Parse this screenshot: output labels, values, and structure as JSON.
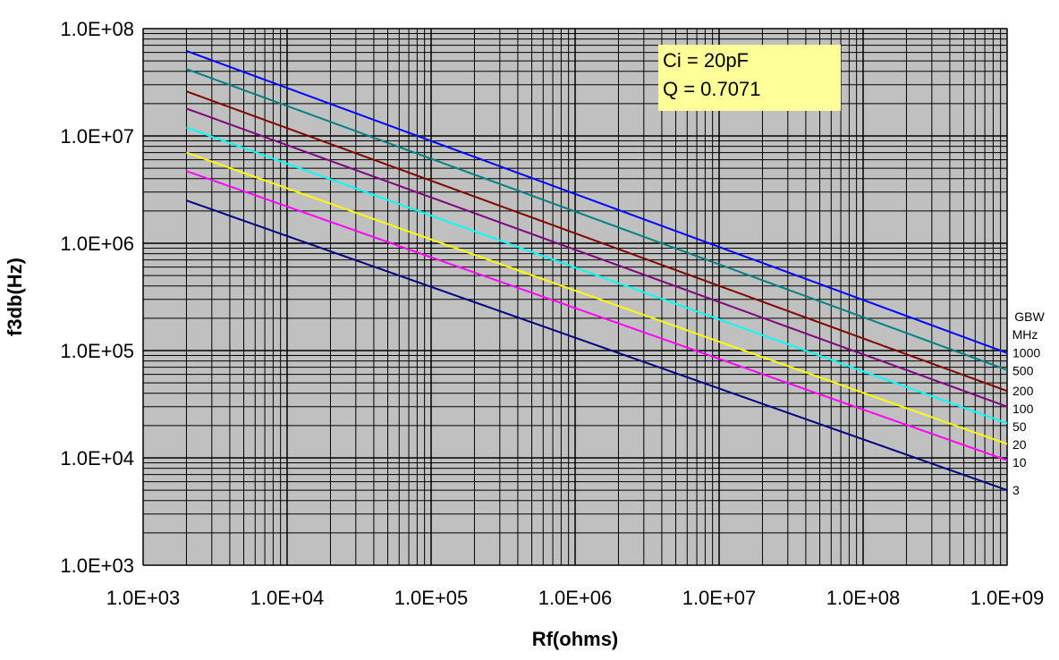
{
  "chart_data": {
    "type": "line",
    "title": "",
    "xlabel": "Rf(ohms)",
    "ylabel": "f3db(Hz)",
    "xscale": "log",
    "yscale": "log",
    "xlim": [
      1000,
      1000000000
    ],
    "ylim": [
      1000,
      100000000
    ],
    "xtick_labels": [
      "1.0E+03",
      "1.0E+04",
      "1.0E+05",
      "1.0E+06",
      "1.0E+07",
      "1.0E+08",
      "1.0E+09"
    ],
    "ytick_labels": [
      "1.0E+03",
      "1.0E+04",
      "1.0E+05",
      "1.0E+06",
      "1.0E+07",
      "1.0E+08"
    ],
    "grid": true,
    "plot_background": "#c0c0c0",
    "annotation": {
      "lines": [
        "Ci = 20pF",
        "Q = 0.7071"
      ],
      "background": "#ffff99"
    },
    "legend": {
      "placement": "right",
      "title_lines": [
        "GBW",
        "MHz"
      ]
    },
    "x": [
      2000,
      1000000000
    ],
    "series": [
      {
        "name": "1000",
        "color": "#0000ff",
        "values": [
          62000000,
          95000
        ]
      },
      {
        "name": "500",
        "color": "#008080",
        "values": [
          42000000,
          66000
        ]
      },
      {
        "name": "200",
        "color": "#800000",
        "values": [
          26000000,
          42000
        ]
      },
      {
        "name": "100",
        "color": "#800080",
        "values": [
          18000000,
          30000
        ]
      },
      {
        "name": "50",
        "color": "#00ffff",
        "values": [
          12000000,
          21000
        ]
      },
      {
        "name": "20",
        "color": "#ffff00",
        "values": [
          7000000,
          13500
        ]
      },
      {
        "name": "10",
        "color": "#ff00ff",
        "values": [
          4700000,
          9500
        ]
      },
      {
        "name": "3",
        "color": "#000080",
        "values": [
          2500000,
          5000
        ]
      }
    ]
  }
}
